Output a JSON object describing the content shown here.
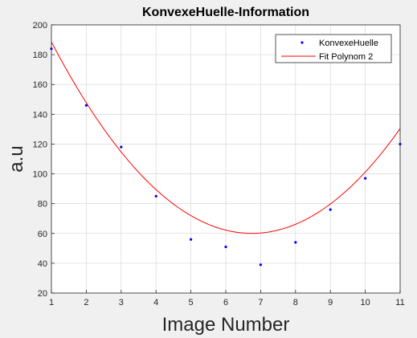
{
  "chart_data": {
    "type": "scatter",
    "title": "KonvexeHuelle-Information",
    "xlabel": "Image Number",
    "ylabel": "a.u",
    "xlim": [
      1,
      11
    ],
    "ylim": [
      20,
      200
    ],
    "xticks": [
      "1",
      "2",
      "3",
      "4",
      "5",
      "6",
      "7",
      "8",
      "9",
      "10",
      "11"
    ],
    "yticks": [
      "20",
      "40",
      "60",
      "80",
      "100",
      "120",
      "140",
      "160",
      "180",
      "200"
    ],
    "grid": true,
    "legend_position": "top-right",
    "series": [
      {
        "name": "KonvexeHuelle",
        "kind": "scatter",
        "color": "#0000ff",
        "x": [
          1,
          2,
          3,
          4,
          5,
          6,
          7,
          8,
          9,
          10,
          11
        ],
        "y": [
          184,
          146,
          118,
          85,
          56,
          51,
          39,
          54,
          76,
          97,
          120
        ]
      },
      {
        "name": "Fit Polynom 2",
        "kind": "line",
        "color": "#ff0000",
        "fit": {
          "a": 3.89,
          "b": -52.5,
          "c": 237.2
        }
      }
    ]
  }
}
